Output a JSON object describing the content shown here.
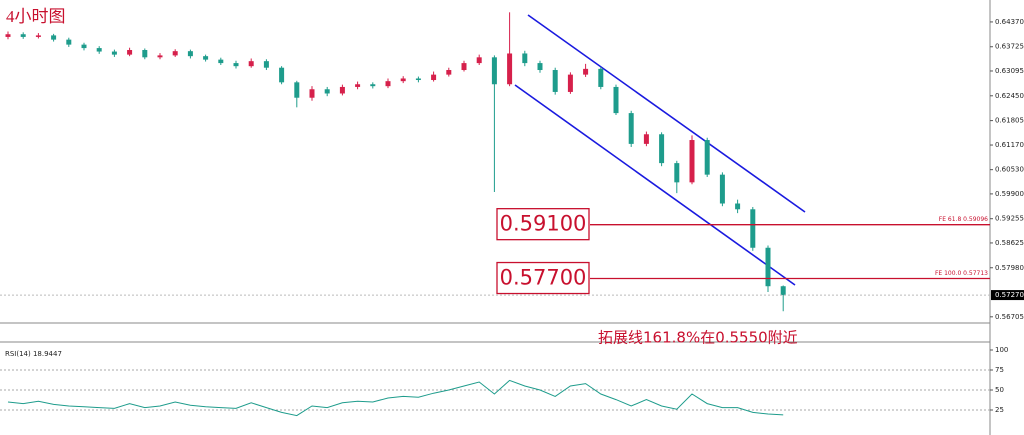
{
  "chart_data": [
    {
      "type": "candlestick",
      "title": "4小时图",
      "up_color": "#d6204b",
      "down_color": "#1e9c8c",
      "ylim": [
        0.5657,
        0.6481
      ],
      "yticks": [
        {
          "value": 0.6437,
          "label": "0.64370"
        },
        {
          "value": 0.63725,
          "label": "0.63725"
        },
        {
          "value": 0.63095,
          "label": "0.63095"
        },
        {
          "value": 0.6245,
          "label": "0.62450"
        },
        {
          "value": 0.61805,
          "label": "0.61805"
        },
        {
          "value": 0.6117,
          "label": "0.61170"
        },
        {
          "value": 0.6053,
          "label": "0.60530"
        },
        {
          "value": 0.599,
          "label": "0.59900"
        },
        {
          "value": 0.59255,
          "label": "0.59255"
        },
        {
          "value": 0.58625,
          "label": "0.58625"
        },
        {
          "value": 0.5798,
          "label": "0.57980"
        },
        {
          "value": 0.56705,
          "label": "0.56705"
        }
      ],
      "open": [
        0.6398,
        0.6405,
        0.6398,
        0.6402,
        0.6391,
        0.6378,
        0.6369,
        0.636,
        0.6352,
        0.6364,
        0.6345,
        0.635,
        0.6361,
        0.6348,
        0.6339,
        0.633,
        0.6322,
        0.6335,
        0.6318,
        0.628,
        0.624,
        0.6262,
        0.6251,
        0.6268,
        0.6275,
        0.627,
        0.6283,
        0.629,
        0.6286,
        0.63,
        0.6312,
        0.633,
        0.6345,
        0.6275,
        0.6355,
        0.633,
        0.6312,
        0.6255,
        0.63,
        0.6315,
        0.6268,
        0.62,
        0.612,
        0.6145,
        0.607,
        0.602,
        0.613,
        0.604,
        0.5965,
        0.595,
        0.585,
        0.575
      ],
      "high": [
        0.6412,
        0.641,
        0.6408,
        0.6406,
        0.6396,
        0.6383,
        0.6374,
        0.6365,
        0.637,
        0.6368,
        0.6356,
        0.6366,
        0.6365,
        0.6352,
        0.6344,
        0.6336,
        0.6342,
        0.634,
        0.6322,
        0.6284,
        0.627,
        0.6268,
        0.6274,
        0.6282,
        0.628,
        0.629,
        0.6296,
        0.6295,
        0.6308,
        0.6318,
        0.6336,
        0.6352,
        0.635,
        0.6462,
        0.6362,
        0.6336,
        0.6318,
        0.6306,
        0.6328,
        0.632,
        0.6274,
        0.6206,
        0.6152,
        0.615,
        0.6076,
        0.6142,
        0.6136,
        0.6046,
        0.5975,
        0.5956,
        0.5856,
        0.5752
      ],
      "low": [
        0.6392,
        0.6393,
        0.6394,
        0.6386,
        0.6372,
        0.6363,
        0.6354,
        0.6346,
        0.6348,
        0.634,
        0.634,
        0.6346,
        0.6342,
        0.6334,
        0.6325,
        0.6316,
        0.6318,
        0.6312,
        0.6275,
        0.6215,
        0.6232,
        0.6244,
        0.6246,
        0.6262,
        0.6264,
        0.6265,
        0.6278,
        0.628,
        0.6282,
        0.6295,
        0.6308,
        0.6325,
        0.5995,
        0.627,
        0.6322,
        0.6305,
        0.6248,
        0.625,
        0.6294,
        0.6262,
        0.6195,
        0.6112,
        0.6114,
        0.6062,
        0.5992,
        0.6015,
        0.6034,
        0.5958,
        0.594,
        0.5842,
        0.5735,
        0.5685
      ],
      "close": [
        0.6405,
        0.6398,
        0.6402,
        0.6391,
        0.6378,
        0.6369,
        0.636,
        0.6352,
        0.6364,
        0.6345,
        0.635,
        0.6361,
        0.6348,
        0.6339,
        0.633,
        0.6322,
        0.6335,
        0.6318,
        0.628,
        0.624,
        0.6262,
        0.6251,
        0.6268,
        0.6275,
        0.627,
        0.6283,
        0.629,
        0.6286,
        0.63,
        0.6312,
        0.633,
        0.6345,
        0.6275,
        0.6355,
        0.633,
        0.6312,
        0.6255,
        0.63,
        0.6315,
        0.6268,
        0.62,
        0.612,
        0.6145,
        0.607,
        0.602,
        0.613,
        0.604,
        0.5965,
        0.595,
        0.585,
        0.575,
        0.5727
      ],
      "last_price": {
        "value": 0.5727,
        "label": "0.57270"
      },
      "levels": [
        {
          "value": 0.591,
          "label": "0.59100",
          "note": "FE 61.8  0.59096"
        },
        {
          "value": 0.577,
          "label": "0.57700",
          "note": "FE 100.0  0.57713"
        }
      ],
      "level_color": "#c8102e",
      "annotation": "拓展线161.8%在0.5550附近"
    },
    {
      "type": "line",
      "title": "RSI(14) 18.9447",
      "color": "#1e9c8c",
      "values": [
        35,
        33,
        36,
        32,
        30,
        29,
        28,
        27,
        33,
        28,
        30,
        35,
        31,
        29,
        28,
        27,
        34,
        28,
        22,
        18,
        30,
        28,
        34,
        36,
        35,
        40,
        42,
        41,
        46,
        50,
        55,
        60,
        45,
        62,
        55,
        50,
        42,
        55,
        58,
        45,
        38,
        30,
        38,
        30,
        26,
        45,
        33,
        28,
        28,
        22,
        20,
        18.9447
      ],
      "ylim": [
        0,
        100
      ],
      "yticks": [
        100,
        75,
        50,
        25
      ]
    }
  ]
}
